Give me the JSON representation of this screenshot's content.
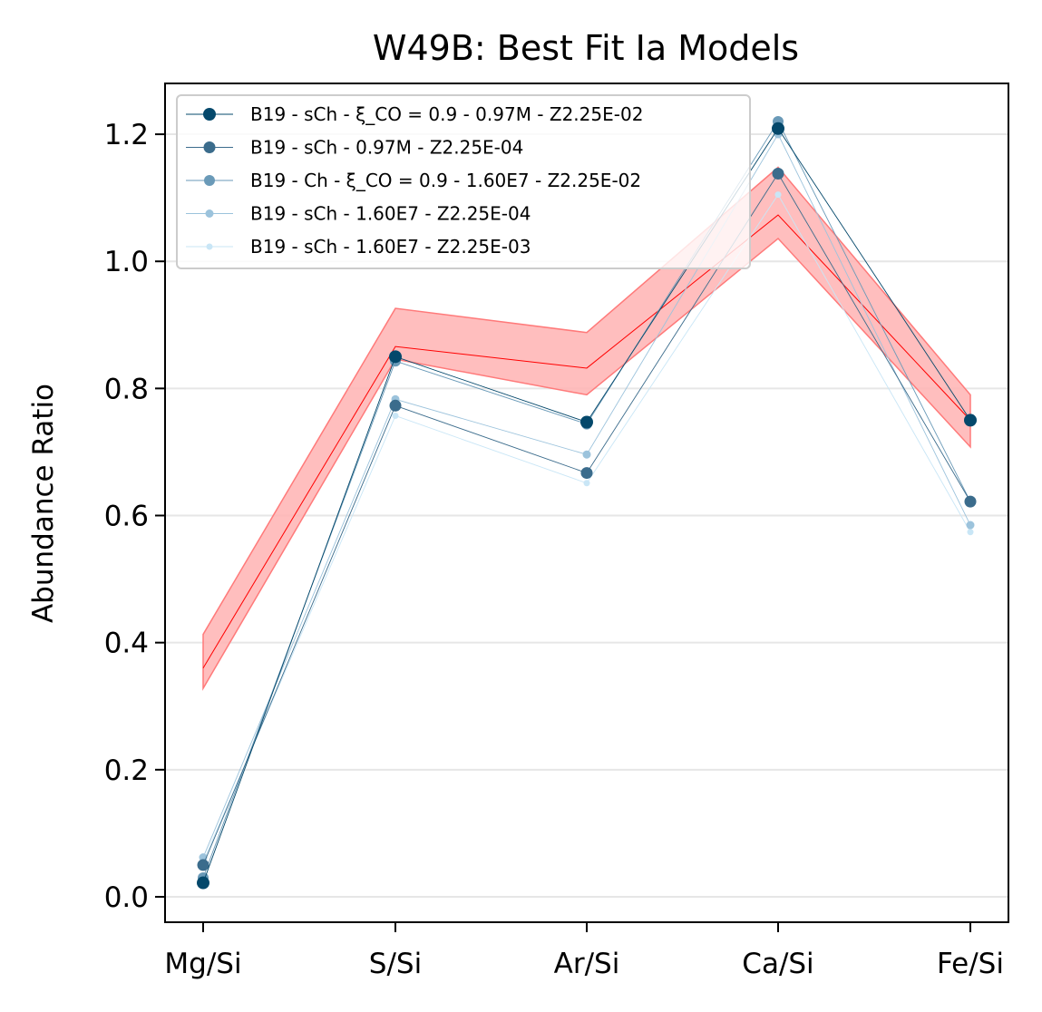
{
  "chart_data": {
    "type": "line",
    "title": "W49B: Best Fit Ia Models",
    "xlabel": "",
    "ylabel": "Abundance Ratio",
    "categories": [
      "Mg/Si",
      "S/Si",
      "Ar/Si",
      "Ca/Si",
      "Fe/Si"
    ],
    "ylim": [
      -0.04,
      1.28
    ],
    "yticks": [
      "0.0",
      "0.2",
      "0.4",
      "0.6",
      "0.8",
      "1.0",
      "1.2"
    ],
    "grid": "horizontal",
    "legend_position": "upper-left",
    "observed": {
      "values": [
        0.36,
        0.866,
        0.832,
        1.073,
        0.75
      ],
      "lower": [
        0.328,
        0.846,
        0.79,
        1.036,
        0.708
      ],
      "upper": [
        0.413,
        0.926,
        0.888,
        1.148,
        0.79
      ],
      "line_color": "#ff0000",
      "band_color": "#ffb3b3"
    },
    "series": [
      {
        "name": "B19 - sCh - ξ_CO = 0.9 - 0.97M - Z2.25E-02",
        "values": [
          0.022,
          0.85,
          0.747,
          1.209,
          0.75
        ],
        "color": "#04486b"
      },
      {
        "name": "B19 - sCh - 0.97M - Z2.25E-04",
        "values": [
          0.05,
          0.773,
          0.667,
          1.138,
          0.622
        ],
        "color": "#3b6c8c"
      },
      {
        "name": "B19 - Ch - ξ_CO = 0.9 - 1.60E7 - Z2.25E-02",
        "values": [
          0.03,
          0.843,
          0.744,
          1.22,
          0.622
        ],
        "color": "#6a9ab8"
      },
      {
        "name": "B19 - sCh - 1.60E7 - Z2.25E-04",
        "values": [
          0.062,
          0.783,
          0.696,
          1.2,
          0.585
        ],
        "color": "#9cc3dc"
      },
      {
        "name": "B19 - sCh - 1.60E7 - Z2.25E-03",
        "values": [
          0.055,
          0.757,
          0.651,
          1.105,
          0.574
        ],
        "color": "#c9e6f6"
      }
    ]
  }
}
